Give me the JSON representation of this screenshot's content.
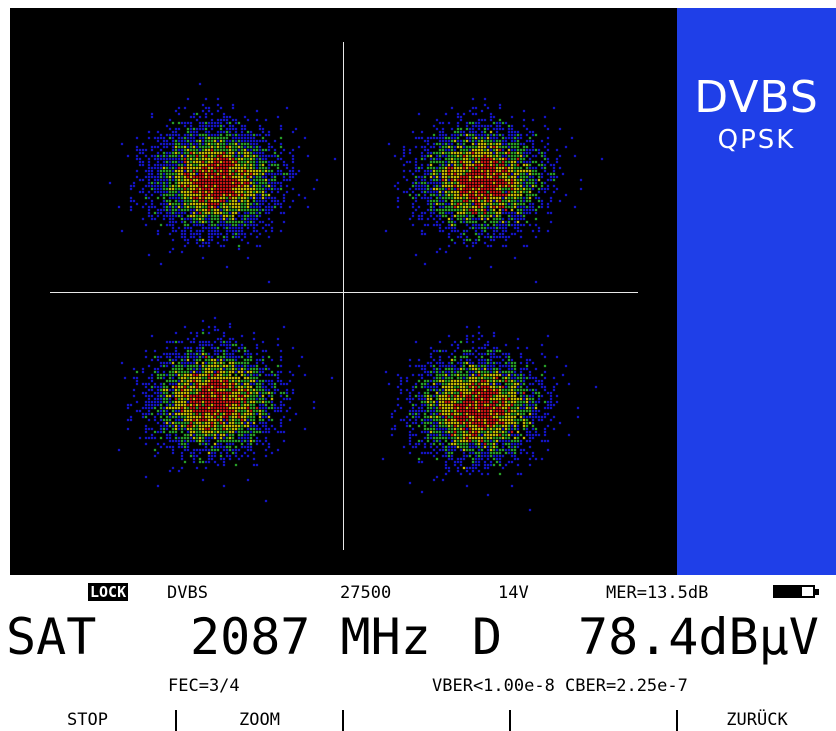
{
  "display": {
    "mode_title": "DVBS",
    "modulation": "QPSK",
    "plot_type": "constellation",
    "symbol_count": 4,
    "colors": {
      "background": "#000000",
      "side_panel": "#1f3fe8",
      "axes": "#e8e8e8",
      "density_low": "#1a1aff",
      "density_mid": "#33cc33",
      "density_high": "#ffee00",
      "density_peak": "#ff1a1a"
    }
  },
  "status": {
    "lock": "LOCK",
    "standard": "DVBS",
    "symbol_rate": "27500",
    "lnb_voltage": "14V",
    "mer": "MER=13.5dB",
    "battery_level": 0.72
  },
  "measurement": {
    "band": "SAT",
    "frequency": "2087 MHz",
    "polarization": "D",
    "level": "78.4dBµV"
  },
  "quality": {
    "fec": "FEC=3/4",
    "ber": "VBER<1.00e-8 CBER=2.25e-7"
  },
  "softkeys": [
    "STOP",
    "ZOOM",
    "",
    "",
    "ZURÜCK"
  ]
}
